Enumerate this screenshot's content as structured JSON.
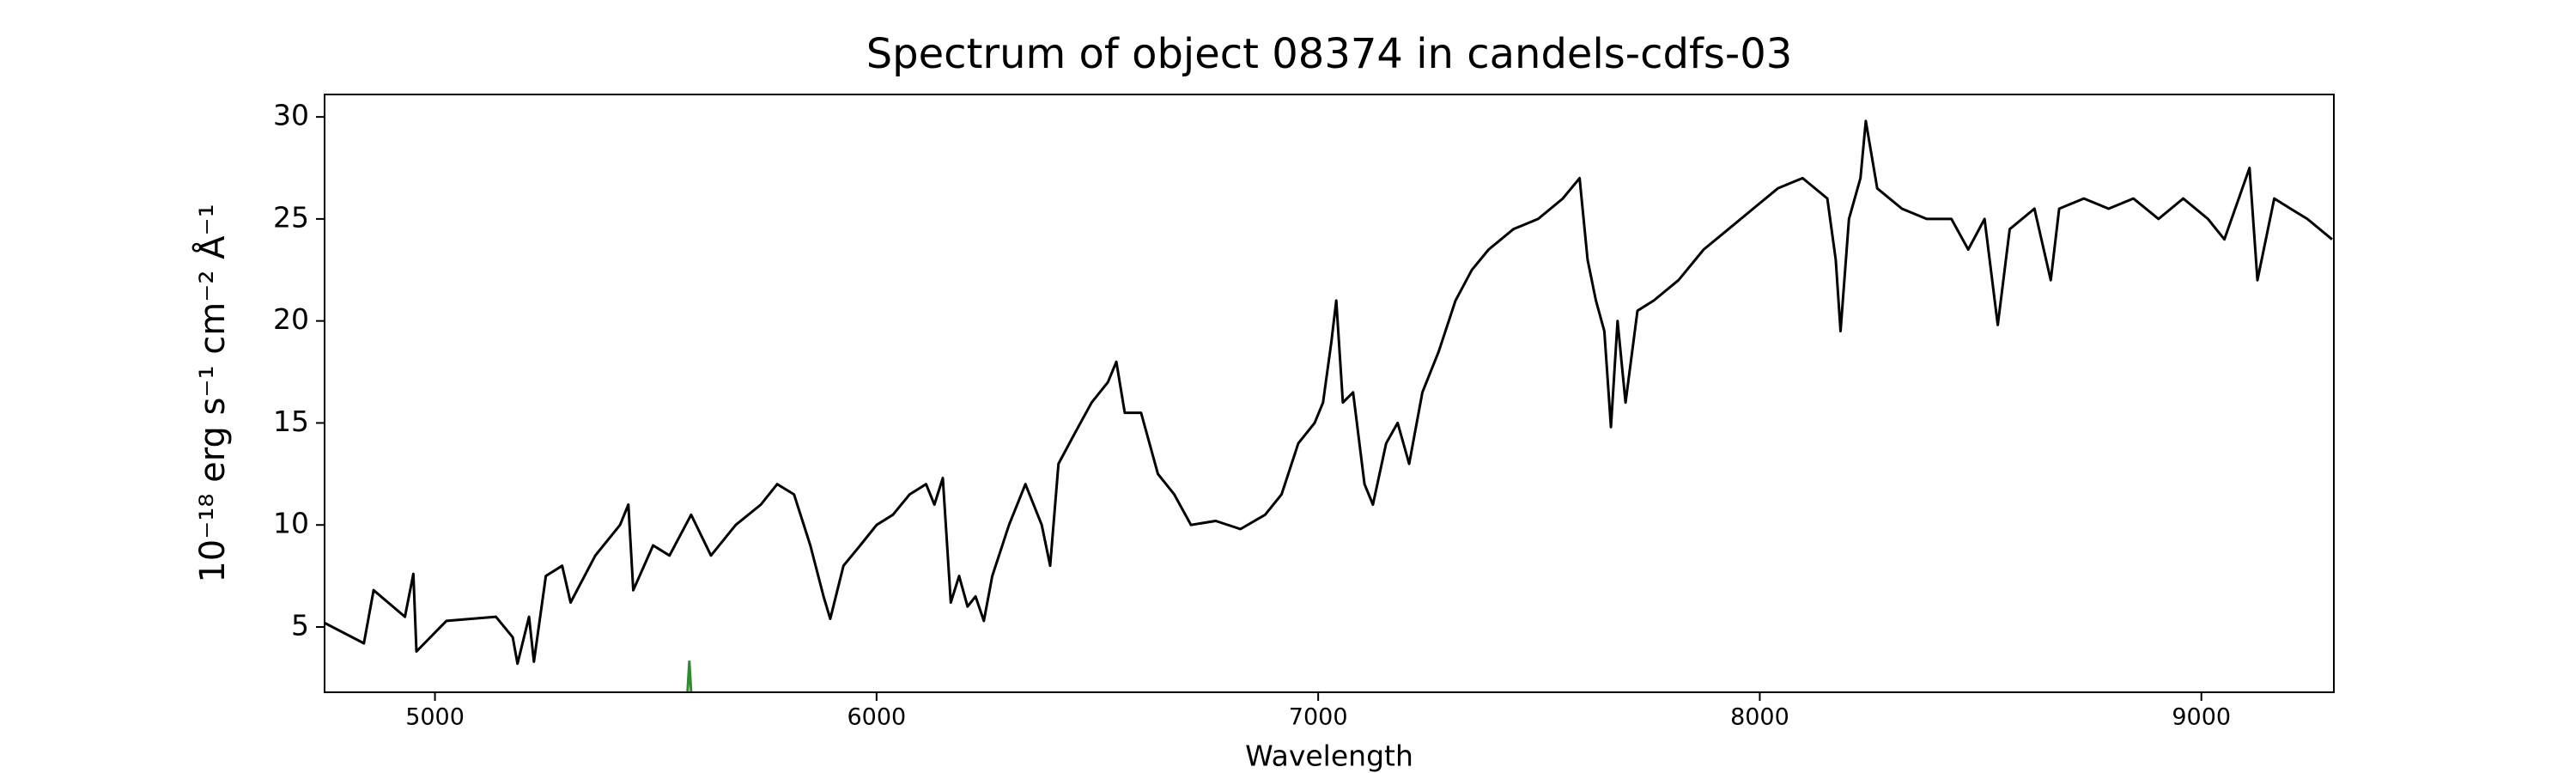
{
  "chart_data": {
    "type": "line",
    "title": "Spectrum of object 08374 in candels-cdfs-03",
    "xlabel": "Wavelength",
    "ylabel": "10⁻¹⁸ erg s⁻¹ cm⁻² Å⁻¹",
    "xlim": [
      4750,
      9300
    ],
    "ylim": [
      1.8,
      31.1
    ],
    "xticks": [
      5000,
      6000,
      7000,
      8000,
      9000
    ],
    "yticks": [
      5,
      10,
      15,
      20,
      25,
      30
    ],
    "grid": false,
    "series": [
      {
        "color": "#000000",
        "x": [
          4750,
          4839,
          4861,
          4932,
          4951,
          4958,
          5026,
          5138,
          5176,
          5187,
          5213,
          5224,
          5251,
          5288,
          5307,
          5363,
          5419,
          5438,
          5449,
          5494,
          5531,
          5580,
          5625,
          5681,
          5738,
          5775,
          5813,
          5850,
          5880,
          5895,
          5925,
          5963,
          6000,
          6037,
          6075,
          6112,
          6131,
          6150,
          6168,
          6187,
          6206,
          6224,
          6243,
          6262,
          6300,
          6337,
          6374,
          6393,
          6412,
          6449,
          6487,
          6524,
          6543,
          6562,
          6599,
          6637,
          6674,
          6712,
          6768,
          6824,
          6880,
          6917,
          6955,
          6992,
          7011,
          7030,
          7041,
          7056,
          7079,
          7105,
          7124,
          7154,
          7180,
          7206,
          7236,
          7273,
          7311,
          7348,
          7386,
          7442,
          7498,
          7554,
          7592,
          7610,
          7629,
          7648,
          7663,
          7678,
          7696,
          7723,
          7760,
          7816,
          7873,
          7929,
          7985,
          8041,
          8097,
          8153,
          8172,
          8183,
          8202,
          8228,
          8240,
          8266,
          8322,
          8378,
          8434,
          8472,
          8509,
          8539,
          8566,
          8622,
          8659,
          8678,
          8734,
          8790,
          8846,
          8903,
          8959,
          9015,
          9052,
          9109,
          9127,
          9165,
          9202,
          9240,
          9296
        ],
        "values": [
          5.2,
          4.2,
          6.8,
          5.5,
          7.6,
          3.8,
          5.3,
          5.5,
          4.5,
          3.2,
          5.5,
          3.3,
          7.5,
          8.0,
          6.2,
          8.5,
          10.0,
          11.0,
          6.8,
          9.0,
          8.5,
          10.5,
          8.5,
          10.0,
          11.0,
          12.0,
          11.5,
          9.0,
          6.5,
          5.4,
          8.0,
          9.0,
          10.0,
          10.5,
          11.5,
          12.0,
          11.0,
          12.3,
          6.2,
          7.5,
          6.0,
          6.5,
          5.3,
          7.5,
          10.0,
          12.0,
          10.0,
          8.0,
          13.0,
          14.5,
          16.0,
          17.0,
          18.0,
          15.5,
          15.5,
          12.5,
          11.5,
          10.0,
          10.2,
          9.8,
          10.5,
          11.5,
          14.0,
          15.0,
          16.0,
          19.0,
          21.0,
          16.0,
          16.5,
          12.0,
          11.0,
          14.0,
          15.0,
          13.0,
          16.5,
          18.5,
          21.0,
          22.5,
          23.5,
          24.5,
          25.0,
          26.0,
          27.0,
          23.0,
          21.0,
          19.5,
          14.8,
          20.0,
          16.0,
          20.5,
          21.0,
          22.0,
          23.5,
          24.5,
          25.5,
          26.5,
          27.0,
          26.0,
          23.0,
          19.5,
          25.0,
          27.0,
          29.8,
          26.5,
          25.5,
          25.0,
          25.0,
          23.5,
          25.0,
          19.8,
          24.5,
          25.5,
          22.0,
          25.5,
          26.0,
          25.5,
          26.0,
          25.0,
          26.0,
          25.0,
          24.0,
          27.5,
          22.0,
          26.0,
          25.5,
          25.0,
          24.0
        ]
      },
      {
        "color": "#2e8b2e",
        "x": [
          5572,
          5576,
          5580
        ],
        "values": [
          1.8,
          3.3,
          1.8
        ]
      }
    ]
  }
}
